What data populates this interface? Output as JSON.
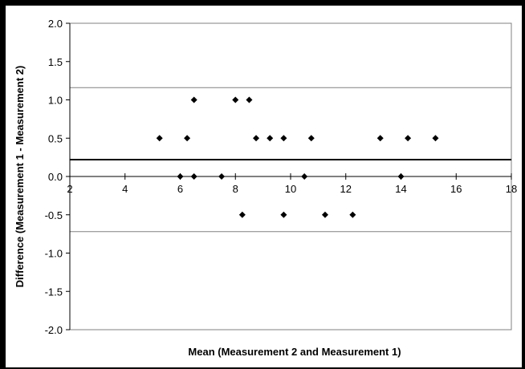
{
  "chart_data": {
    "type": "scatter",
    "title": "",
    "xlabel": "Mean (Measurement 2 and Measurement 1)",
    "ylabel": "Difference (Measurement 1 - Measurement 2)",
    "xlim": [
      2,
      18
    ],
    "ylim": [
      -2.0,
      2.0
    ],
    "x_ticks": [
      2,
      4,
      6,
      8,
      10,
      12,
      14,
      16,
      18
    ],
    "y_ticks": [
      "2.0",
      "1.5",
      "1.0",
      "0.5",
      "0.0",
      "-0.5",
      "-1.0",
      "-1.5",
      "-2.0"
    ],
    "grid": false,
    "legend": "none",
    "colors": {
      "marker": "#000000",
      "line": "#000000",
      "limit_line": "#808080",
      "plot_border": "#808080"
    },
    "series": [
      {
        "points": [
          [
            5.25,
            0.5
          ],
          [
            6.0,
            0.0
          ],
          [
            6.25,
            0.5
          ],
          [
            6.5,
            1.0
          ],
          [
            6.5,
            0.0
          ],
          [
            7.5,
            0.0
          ],
          [
            8.0,
            1.0
          ],
          [
            8.25,
            -0.5
          ],
          [
            8.5,
            1.0
          ],
          [
            8.75,
            0.5
          ],
          [
            9.25,
            0.5
          ],
          [
            9.75,
            0.5
          ],
          [
            9.75,
            -0.5
          ],
          [
            10.5,
            0.0
          ],
          [
            10.75,
            0.5
          ],
          [
            11.25,
            -0.5
          ],
          [
            12.25,
            -0.5
          ],
          [
            13.25,
            0.5
          ],
          [
            14.0,
            0.0
          ],
          [
            14.25,
            0.5
          ],
          [
            15.25,
            0.5
          ]
        ]
      }
    ],
    "reference_lines": [
      {
        "kind": "mean_difference",
        "y": 0.22
      },
      {
        "kind": "upper_limit",
        "y": 1.16
      },
      {
        "kind": "lower_limit",
        "y": -0.72
      }
    ]
  }
}
